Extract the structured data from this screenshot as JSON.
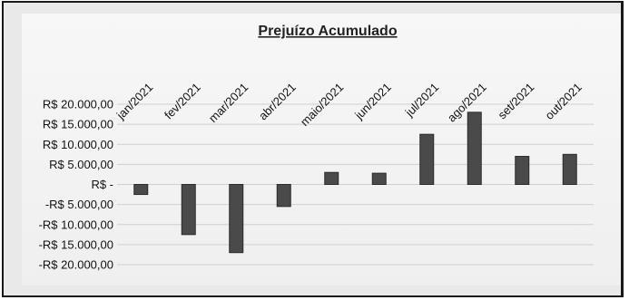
{
  "chart_data": {
    "type": "bar",
    "title": "Prejuízo Acumulado",
    "xlabel": "",
    "ylabel": "",
    "categories": [
      "jan/2021",
      "fev/2021",
      "mar/2021",
      "abr/2021",
      "maio/2021",
      "jun/2021",
      "jul/2021",
      "ago/2021",
      "set/2021",
      "out/2021"
    ],
    "values": [
      -2500,
      -12500,
      -17000,
      -5500,
      3000,
      2800,
      12500,
      18000,
      7000,
      7500
    ],
    "ylim": [
      -20000,
      20000
    ],
    "yticks": [
      20000,
      15000,
      10000,
      5000,
      0,
      -5000,
      -10000,
      -15000,
      -20000
    ],
    "ytick_labels": [
      "R$ 20.000,00",
      "R$ 15.000,00",
      "R$ 10.000,00",
      "R$ 5.000,00",
      "R$ -",
      "-R$ 5.000,00",
      "-R$ 10.000,00",
      "-R$ 15.000,00",
      "-R$ 20.000,00"
    ],
    "grid": true,
    "legend": "none",
    "colors": {
      "bar": "#4a4a4a",
      "grid": "#cfcfcf",
      "background": "#f3f3f3"
    }
  }
}
